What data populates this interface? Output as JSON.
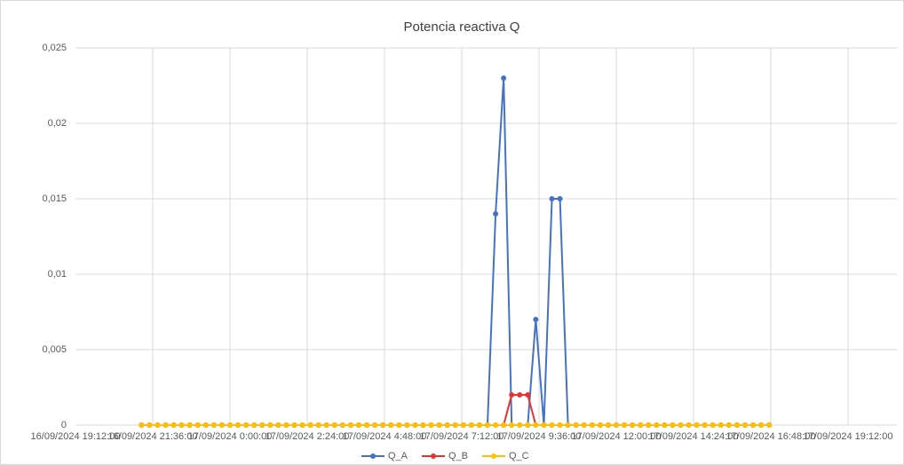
{
  "chart_data": {
    "type": "line",
    "title": "Potencia reactiva Q",
    "x": [
      45551.8854,
      45551.8958,
      45551.9063,
      45551.9167,
      45551.9271,
      45551.9375,
      45551.9479,
      45551.9583,
      45551.9688,
      45551.9792,
      45551.9896,
      45552.0,
      45552.0104,
      45552.0208,
      45552.0313,
      45552.0417,
      45552.0521,
      45552.0625,
      45552.0729,
      45552.0833,
      45552.0938,
      45552.1042,
      45552.1146,
      45552.125,
      45552.1354,
      45552.1458,
      45552.1563,
      45552.1667,
      45552.1771,
      45552.1875,
      45552.1979,
      45552.2083,
      45552.2188,
      45552.2292,
      45552.2396,
      45552.25,
      45552.2604,
      45552.2708,
      45552.2813,
      45552.2917,
      45552.3021,
      45552.3125,
      45552.3229,
      45552.3333,
      45552.3438,
      45552.3542,
      45552.3646,
      45552.375,
      45552.3854,
      45552.3958,
      45552.4063,
      45552.4167,
      45552.4271,
      45552.4375,
      45552.4479,
      45552.4583,
      45552.4688,
      45552.4792,
      45552.4896,
      45552.5,
      45552.5104,
      45552.5208,
      45552.5313,
      45552.5417,
      45552.5521,
      45552.5625,
      45552.5729,
      45552.5833,
      45552.5938,
      45552.6042,
      45552.6146,
      45552.625,
      45552.6354,
      45552.6458,
      45552.6563,
      45552.6667,
      45552.6771,
      45552.6875,
      45552.6979
    ],
    "series": [
      {
        "name": "Q_A",
        "color": "#4472c4",
        "values": [
          0,
          0,
          0,
          0,
          0,
          0,
          0,
          0,
          0,
          0,
          0,
          0,
          0,
          0,
          0,
          0,
          0,
          0,
          0,
          0,
          0,
          0,
          0,
          0,
          0,
          0,
          0,
          0,
          0,
          0,
          0,
          0,
          0,
          0,
          0,
          0,
          0,
          0,
          0,
          0,
          0,
          0,
          0,
          0,
          0.014,
          0.023,
          0,
          0,
          0,
          0.007,
          0,
          0.015,
          0.015,
          0,
          0,
          0,
          0,
          0,
          0,
          0,
          0,
          0,
          0,
          0,
          0,
          0,
          0,
          0,
          0,
          0,
          0,
          0,
          0,
          0,
          0,
          0,
          0,
          0,
          0
        ]
      },
      {
        "name": "Q_B",
        "color": "#e8322e",
        "values": [
          0,
          0,
          0,
          0,
          0,
          0,
          0,
          0,
          0,
          0,
          0,
          0,
          0,
          0,
          0,
          0,
          0,
          0,
          0,
          0,
          0,
          0,
          0,
          0,
          0,
          0,
          0,
          0,
          0,
          0,
          0,
          0,
          0,
          0,
          0,
          0,
          0,
          0,
          0,
          0,
          0,
          0,
          0,
          0,
          0,
          0,
          0.002,
          0.002,
          0.002,
          0,
          0,
          0,
          0,
          0,
          0,
          0,
          0,
          0,
          0,
          0,
          0,
          0,
          0,
          0,
          0,
          0,
          0,
          0,
          0,
          0,
          0,
          0,
          0,
          0,
          0,
          0,
          0,
          0,
          0
        ]
      },
      {
        "name": "Q_C",
        "color": "#ffc000",
        "values": [
          0,
          0,
          0,
          0,
          0,
          0,
          0,
          0,
          0,
          0,
          0,
          0,
          0,
          0,
          0,
          0,
          0,
          0,
          0,
          0,
          0,
          0,
          0,
          0,
          0,
          0,
          0,
          0,
          0,
          0,
          0,
          0,
          0,
          0,
          0,
          0,
          0,
          0,
          0,
          0,
          0,
          0,
          0,
          0,
          0,
          0,
          0,
          0,
          0,
          0,
          0,
          0,
          0,
          0,
          0,
          0,
          0,
          0,
          0,
          0,
          0,
          0,
          0,
          0,
          0,
          0,
          0,
          0,
          0,
          0,
          0,
          0,
          0,
          0,
          0,
          0,
          0,
          0,
          0
        ]
      }
    ],
    "xlim": [
      45551.8,
      45552.8
    ],
    "xticks": [
      {
        "value": 45551.8,
        "label": "16/09/2024 19:12:00"
      },
      {
        "value": 45551.9,
        "label": "16/09/2024 21:36:00"
      },
      {
        "value": 45552.0,
        "label": "17/09/2024 0:00:00"
      },
      {
        "value": 45552.1,
        "label": "17/09/2024 2:24:00"
      },
      {
        "value": 45552.2,
        "label": "17/09/2024 4:48:00"
      },
      {
        "value": 45552.3,
        "label": "17/09/2024 7:12:00"
      },
      {
        "value": 45552.4,
        "label": "17/09/2024 9:36:00"
      },
      {
        "value": 45552.5,
        "label": "17/09/2024 12:00:00"
      },
      {
        "value": 45552.6,
        "label": "17/09/2024 14:24:00"
      },
      {
        "value": 45552.7,
        "label": "17/09/2024 16:48:00"
      },
      {
        "value": 45552.8,
        "label": "17/09/2024 19:12:00"
      }
    ],
    "ylim": [
      0,
      0.025
    ],
    "yticks": [
      0,
      {
        "value": 0.005,
        "label": "0,005"
      },
      {
        "value": 0.01,
        "label": "0,01"
      },
      {
        "value": 0.015,
        "label": "0,015"
      },
      {
        "value": 0.02,
        "label": "0,02"
      },
      {
        "value": 0.025,
        "label": "0,025"
      }
    ],
    "grid": true,
    "legend": "bottom"
  }
}
